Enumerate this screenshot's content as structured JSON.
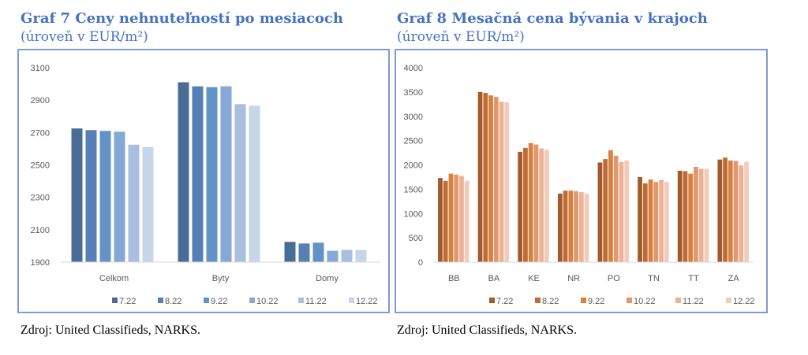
{
  "chart_data": [
    {
      "type": "bar",
      "title": "Graf 7 Ceny nehnuteľností po mesiacoch",
      "subtitle": "(úroveň v EUR/m²)",
      "source": "Zdroj: United Classifieds, NARKS.",
      "categories": [
        "Celkom",
        "Byty",
        "Domy"
      ],
      "ylim": [
        1900,
        3100
      ],
      "yticks": [
        1900,
        2100,
        2300,
        2500,
        2700,
        2900,
        3100
      ],
      "legend_position": "bottom",
      "series": [
        {
          "name": "7.22",
          "color": "#4a6d98",
          "values": [
            2725,
            3010,
            2025
          ]
        },
        {
          "name": "8.22",
          "color": "#5680b5",
          "values": [
            2715,
            2985,
            2015
          ]
        },
        {
          "name": "9.22",
          "color": "#6393c6",
          "values": [
            2710,
            2980,
            2020
          ]
        },
        {
          "name": "10.22",
          "color": "#86a8d6",
          "values": [
            2705,
            2985,
            1970
          ]
        },
        {
          "name": "11.22",
          "color": "#aabedf",
          "values": [
            2625,
            2875,
            1975
          ]
        },
        {
          "name": "12.22",
          "color": "#c7d5e8",
          "values": [
            2610,
            2865,
            1975
          ]
        }
      ]
    },
    {
      "type": "bar",
      "title": "Graf 8 Mesačná cena bývania v krajoch",
      "subtitle": "(úroveň v EUR/m²)",
      "source": "Zdroj: United Classifieds, NARKS.",
      "categories": [
        "BB",
        "BA",
        "KE",
        "NR",
        "PO",
        "TN",
        "TT",
        "ZA"
      ],
      "ylim": [
        0,
        4000
      ],
      "yticks": [
        0,
        500,
        1000,
        1500,
        2000,
        2500,
        3000,
        3500,
        4000
      ],
      "legend_position": "bottom",
      "series": [
        {
          "name": "7.22",
          "color": "#a35a2b",
          "values": [
            1730,
            3500,
            2270,
            1410,
            2050,
            1750,
            1880,
            2110
          ]
        },
        {
          "name": "8.22",
          "color": "#c06a34",
          "values": [
            1670,
            3480,
            2350,
            1470,
            2120,
            1620,
            1870,
            2150
          ]
        },
        {
          "name": "9.22",
          "color": "#d9803f",
          "values": [
            1820,
            3430,
            2450,
            1470,
            2300,
            1700,
            1820,
            2090
          ]
        },
        {
          "name": "10.22",
          "color": "#e3976c",
          "values": [
            1800,
            3400,
            2420,
            1460,
            2190,
            1650,
            1960,
            2080
          ]
        },
        {
          "name": "11.22",
          "color": "#ebb294",
          "values": [
            1770,
            3300,
            2340,
            1440,
            2060,
            1690,
            1920,
            1990
          ]
        },
        {
          "name": "12.22",
          "color": "#f2cbba",
          "values": [
            1670,
            3290,
            2310,
            1410,
            2090,
            1650,
            1920,
            2060
          ]
        }
      ]
    }
  ]
}
